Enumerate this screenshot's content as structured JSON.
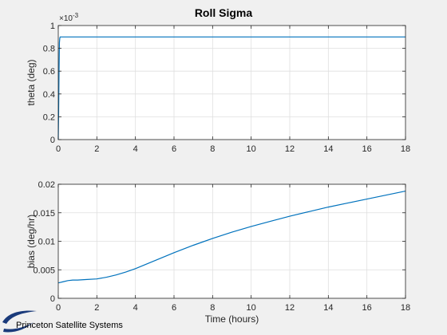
{
  "figure_title": "Roll Sigma",
  "logo": {
    "text": "Princeton Satellite Systems",
    "color": "#1a3a7a"
  },
  "chart_data": [
    {
      "type": "line",
      "title": "Roll Sigma",
      "xlabel": "",
      "ylabel": "theta (deg)",
      "xlim": [
        0,
        18
      ],
      "ylim": [
        0,
        1
      ],
      "x_ticks": [
        0,
        2,
        4,
        6,
        8,
        10,
        12,
        14,
        16,
        18
      ],
      "x_tick_labels": [
        "0",
        "2",
        "4",
        "6",
        "8",
        "10",
        "12",
        "14",
        "16",
        "18"
      ],
      "y_ticks": [
        0,
        0.2,
        0.4,
        0.6,
        0.8,
        1
      ],
      "y_tick_labels": [
        "0",
        "0.2",
        "0.4",
        "0.6",
        "0.8",
        "1"
      ],
      "y_exponent_label": "×10",
      "y_exponent_power": "-3",
      "grid": true,
      "color": "#0072bd",
      "series": [
        {
          "x": [
            0,
            0.02,
            0.04,
            0.06,
            0.08,
            0.1,
            0.15,
            0.2,
            1,
            5,
            10,
            15,
            18
          ],
          "y": [
            0,
            0.25,
            0.6,
            0.85,
            0.89,
            0.9,
            0.9,
            0.9,
            0.9,
            0.9,
            0.9,
            0.9,
            0.9
          ]
        }
      ]
    },
    {
      "type": "line",
      "title": "",
      "xlabel": "Time (hours)",
      "ylabel": "bias (deg/hr)",
      "xlim": [
        0,
        18
      ],
      "ylim": [
        0,
        0.02
      ],
      "x_ticks": [
        0,
        2,
        4,
        6,
        8,
        10,
        12,
        14,
        16,
        18
      ],
      "x_tick_labels": [
        "0",
        "2",
        "4",
        "6",
        "8",
        "10",
        "12",
        "14",
        "16",
        "18"
      ],
      "y_ticks": [
        0,
        0.005,
        0.01,
        0.015,
        0.02
      ],
      "y_tick_labels": [
        "0",
        "0.005",
        "0.01",
        "0.015",
        "0.02"
      ],
      "grid": true,
      "color": "#0072bd",
      "series": [
        {
          "x": [
            0,
            0.25,
            0.5,
            0.75,
            1,
            1.5,
            2,
            2.5,
            3,
            3.5,
            4,
            5,
            6,
            7,
            8,
            9,
            10,
            11,
            12,
            13,
            14,
            15,
            16,
            17,
            18
          ],
          "y": [
            0.0027,
            0.0029,
            0.0031,
            0.0032,
            0.0032,
            0.0033,
            0.0034,
            0.0037,
            0.0041,
            0.0046,
            0.0052,
            0.0066,
            0.008,
            0.0093,
            0.0105,
            0.0116,
            0.0126,
            0.0135,
            0.0144,
            0.0152,
            0.016,
            0.0167,
            0.0174,
            0.0181,
            0.0188
          ]
        }
      ]
    }
  ]
}
